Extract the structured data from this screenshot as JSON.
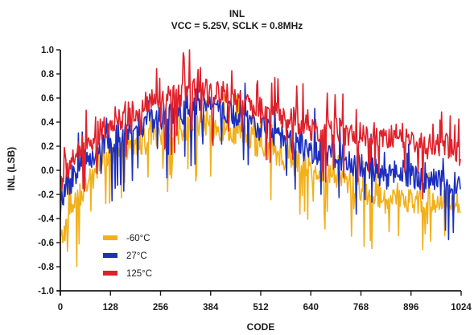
{
  "chart_data": {
    "type": "line",
    "title": "INL",
    "subtitle": "VCC =  5.25V, SCLK = 0.8MHz",
    "xlabel": "CODE",
    "ylabel": "INL (LSB)",
    "xlim": [
      0,
      1024
    ],
    "ylim": [
      -1.0,
      1.0
    ],
    "xticks": [
      0,
      128,
      256,
      384,
      512,
      640,
      768,
      896,
      1024
    ],
    "yticks": [
      "-1.0",
      "-0.8",
      "-0.6",
      "-0.4",
      "-0.2",
      "0.0",
      "0.2",
      "0.4",
      "0.6",
      "0.8",
      "1.0"
    ],
    "grid": false,
    "legend": "bottom-left",
    "x": [
      0,
      32,
      64,
      96,
      128,
      160,
      192,
      224,
      256,
      288,
      320,
      352,
      384,
      416,
      448,
      480,
      512,
      544,
      576,
      608,
      640,
      672,
      704,
      736,
      768,
      800,
      832,
      864,
      896,
      928,
      960,
      992,
      1023
    ],
    "series": [
      {
        "name": "-60°C",
        "color": "#f2b01a",
        "values": [
          -0.6,
          -0.3,
          -0.15,
          0.0,
          0.1,
          0.15,
          0.2,
          0.25,
          0.25,
          0.3,
          0.35,
          0.35,
          0.35,
          0.35,
          0.3,
          0.25,
          0.2,
          0.15,
          0.1,
          0.05,
          0.0,
          0.0,
          -0.05,
          -0.1,
          -0.15,
          -0.2,
          -0.25,
          -0.2,
          -0.25,
          -0.25,
          -0.25,
          -0.25,
          -0.3
        ]
      },
      {
        "name": "27°C",
        "color": "#1c2fbf",
        "values": [
          -0.3,
          -0.05,
          0.1,
          0.15,
          0.25,
          0.3,
          0.35,
          0.4,
          0.45,
          0.45,
          0.5,
          0.5,
          0.5,
          0.5,
          0.45,
          0.4,
          0.35,
          0.3,
          0.25,
          0.2,
          0.15,
          0.15,
          0.1,
          0.05,
          0.05,
          0.0,
          -0.05,
          0.0,
          -0.05,
          -0.1,
          -0.1,
          -0.1,
          -0.15
        ]
      },
      {
        "name": "125°C",
        "color": "#e0202a",
        "values": [
          -0.1,
          0.1,
          0.2,
          0.3,
          0.4,
          0.45,
          0.5,
          0.55,
          0.6,
          0.6,
          0.65,
          0.65,
          0.65,
          0.65,
          0.6,
          0.55,
          0.5,
          0.45,
          0.45,
          0.4,
          0.35,
          0.35,
          0.35,
          0.3,
          0.3,
          0.3,
          0.25,
          0.3,
          0.25,
          0.2,
          0.2,
          0.2,
          0.1
        ]
      }
    ]
  }
}
